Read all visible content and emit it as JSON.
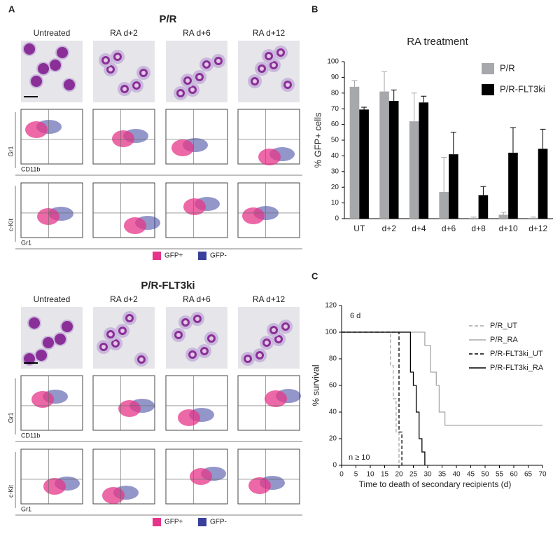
{
  "panel_a": {
    "label": "A",
    "groups": [
      {
        "title": "P/R",
        "conditions": [
          "Untreated",
          "RA d+2",
          "RA d+6",
          "RA d+12"
        ],
        "rows": [
          {
            "y_label": "Gr1",
            "x_label": "CD11b"
          },
          {
            "y_label": "c-Kit",
            "x_label": "Gr1"
          }
        ],
        "legend": [
          {
            "name": "GFP+",
            "color": "#e5358a"
          },
          {
            "name": "GFP-",
            "color": "#3a3f9a"
          }
        ]
      },
      {
        "title": "P/R-FLT3ki",
        "conditions": [
          "Untreated",
          "RA d+2",
          "RA d+6",
          "RA d+12"
        ],
        "rows": [
          {
            "y_label": "Gr1",
            "x_label": "CD11b"
          },
          {
            "y_label": "c-Kit",
            "x_label": "Gr1"
          }
        ],
        "legend": [
          {
            "name": "GFP+",
            "color": "#e5358a"
          },
          {
            "name": "GFP-",
            "color": "#3a3f9a"
          }
        ]
      }
    ]
  },
  "chart_data": [
    {
      "type": "bar",
      "panel_label": "B",
      "title": "RA treatment",
      "y_label": "% GFP+ cells",
      "categories": [
        "UT",
        "d+2",
        "d+4",
        "d+6",
        "d+8",
        "d+10",
        "d+12"
      ],
      "series": [
        {
          "name": "P/R",
          "color": "#a6a8ab",
          "values": [
            84,
            81,
            62,
            17,
            0.5,
            2.5,
            0.5
          ],
          "errors": [
            4,
            12.5,
            18,
            22,
            0.5,
            1.5,
            0.5
          ]
        },
        {
          "name": "P/R-FLT3ki",
          "color": "#000000",
          "values": [
            69.5,
            75,
            74,
            41,
            15,
            42,
            44.5
          ],
          "errors": [
            1.5,
            7,
            4,
            14,
            5.5,
            16,
            12.5
          ]
        }
      ],
      "ylim": [
        0,
        100
      ],
      "yticks": [
        0,
        10,
        20,
        30,
        40,
        50,
        60,
        70,
        80,
        90,
        100
      ],
      "grid": false,
      "legend": "top-right"
    },
    {
      "type": "line",
      "panel_label": "C",
      "x_label": "Time to death of secondary recipients (d)",
      "y_label": "% survival",
      "annotations": [
        "6 d",
        "n ≥ 10"
      ],
      "series": [
        {
          "name": "P/R_UT",
          "color": "#a6a8ab",
          "dash": true,
          "x": [
            0,
            17,
            17,
            18,
            18,
            19,
            19,
            20,
            20
          ],
          "values": [
            100,
            100,
            75,
            75,
            50,
            50,
            25,
            25,
            0
          ]
        },
        {
          "name": "P/R_RA",
          "color": "#a6a8ab",
          "dash": false,
          "x": [
            0,
            29,
            29,
            31,
            31,
            33,
            33,
            34,
            34,
            36,
            36,
            70
          ],
          "values": [
            100,
            100,
            90,
            90,
            70,
            70,
            60,
            60,
            40,
            40,
            30,
            30
          ]
        },
        {
          "name": "P/R-FLT3ki_UT",
          "color": "#000000",
          "dash": true,
          "x": [
            0,
            20,
            20,
            21,
            21
          ],
          "values": [
            100,
            100,
            25,
            25,
            0
          ]
        },
        {
          "name": "P/R-FLT3ki_RA",
          "color": "#000000",
          "dash": false,
          "x": [
            0,
            24,
            24,
            25,
            25,
            26,
            26,
            27,
            27,
            28,
            28,
            29,
            29
          ],
          "values": [
            100,
            100,
            70,
            70,
            60,
            60,
            40,
            40,
            20,
            20,
            10,
            10,
            0
          ]
        }
      ],
      "xlim": [
        0,
        70
      ],
      "xticks": [
        0,
        5,
        10,
        15,
        20,
        25,
        30,
        35,
        40,
        45,
        50,
        55,
        60,
        65,
        70
      ],
      "ylim": [
        0,
        120
      ],
      "yticks": [
        0,
        20,
        40,
        60,
        80,
        100,
        120
      ],
      "grid": false,
      "legend": "top-right"
    }
  ]
}
